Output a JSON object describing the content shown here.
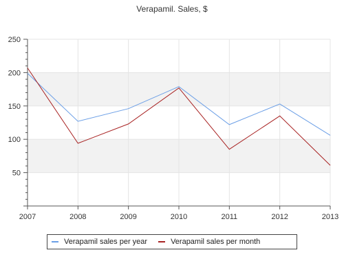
{
  "chart_data": {
    "type": "line",
    "title": "Verapamil. Sales, $",
    "xlabel": "",
    "ylabel": "",
    "x": [
      "2007",
      "2008",
      "2009",
      "2010",
      "2011",
      "2012",
      "2013"
    ],
    "ylim": [
      0,
      250
    ],
    "yticks": [
      50,
      100,
      150,
      200,
      250
    ],
    "grid": true,
    "alternating_bands": true,
    "legend_position": "bottom",
    "series": [
      {
        "name": "Verapamil sales per year",
        "color": "#6a9ee6",
        "values": [
          199,
          127,
          146,
          179,
          122,
          153,
          106
        ]
      },
      {
        "name": "Verapamil sales per month",
        "color": "#a82222",
        "values": [
          207,
          94,
          123,
          177,
          85,
          135,
          61
        ]
      }
    ]
  }
}
